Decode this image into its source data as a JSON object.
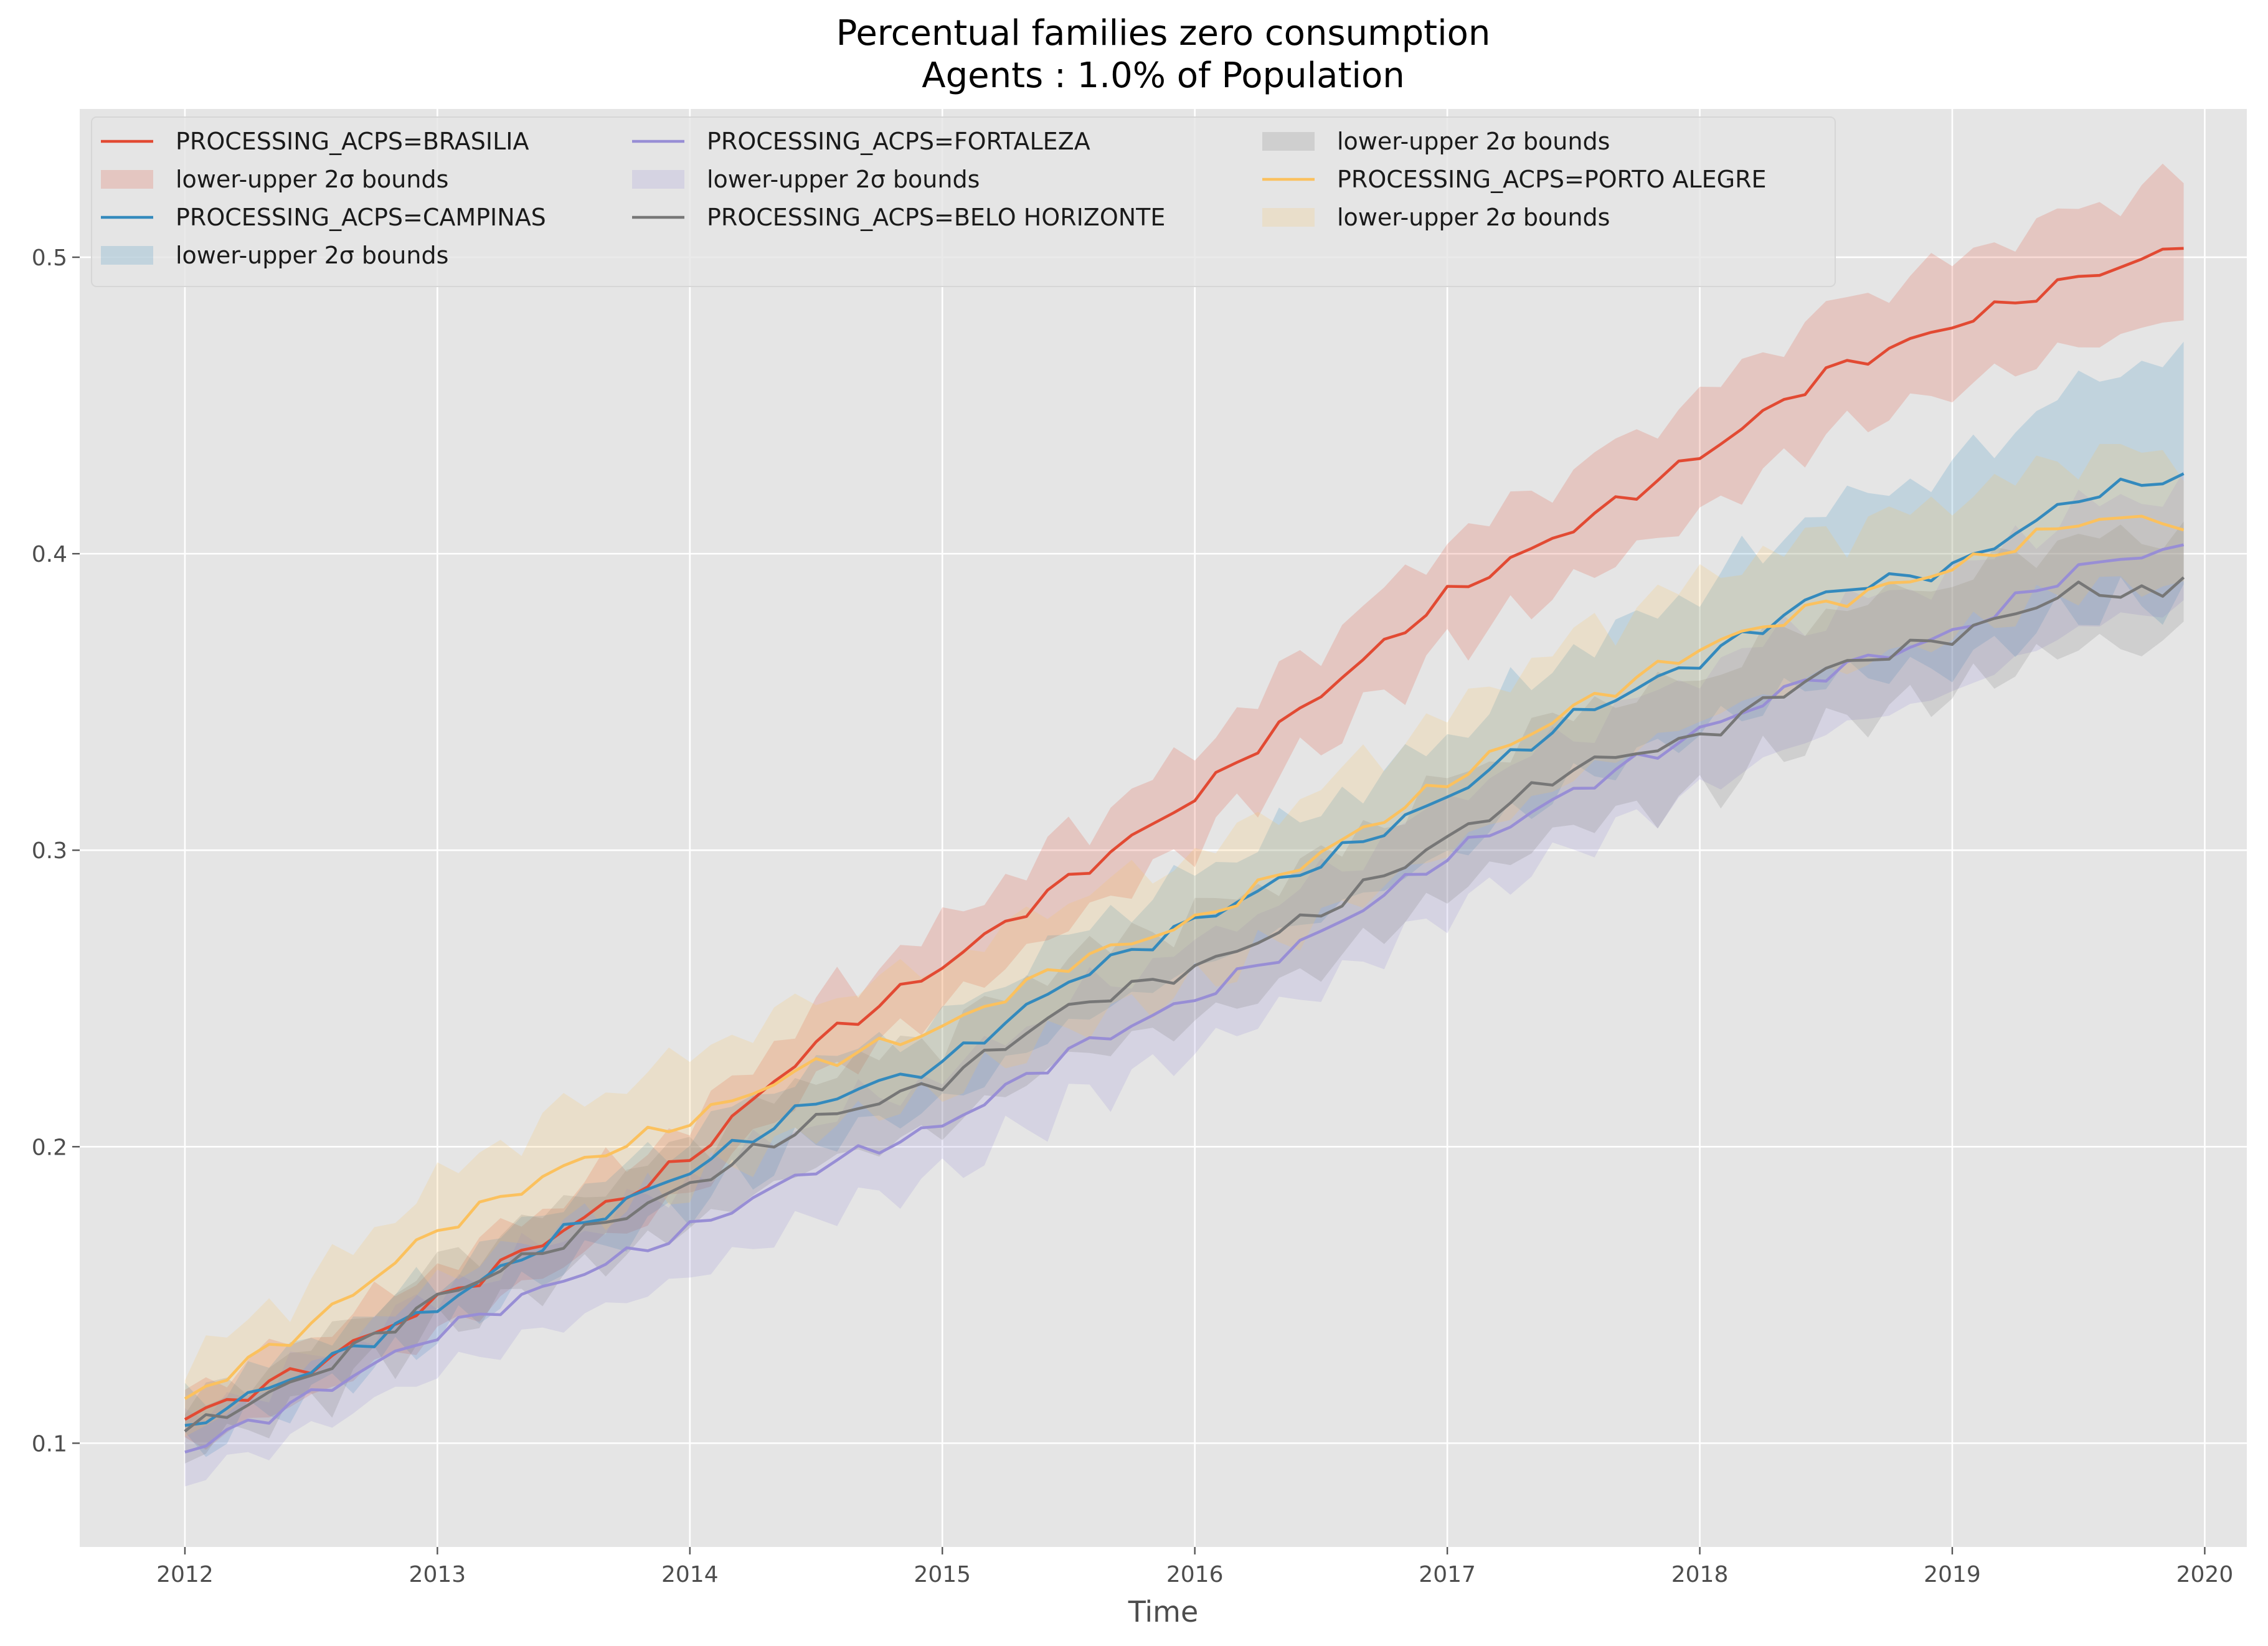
{
  "chart_data": {
    "type": "line",
    "title": "Percentual families zero consumption",
    "subtitle": "Agents : 1.0% of Population",
    "xlabel": "Time",
    "ylabel": "",
    "x_start": "2012-01",
    "x_end": "2019-12",
    "x_step": "1 month",
    "xlim": [
      "2011-08",
      "2020-03"
    ],
    "ylim": [
      0.065,
      0.55
    ],
    "x_ticks": [
      "2012",
      "2013",
      "2014",
      "2015",
      "2016",
      "2017",
      "2018",
      "2019",
      "2020"
    ],
    "y_ticks": [
      "0.1",
      "0.2",
      "0.3",
      "0.4",
      "0.5"
    ],
    "grid": true,
    "style": "ggplot",
    "legend_position": "top-left",
    "band_label": "lower-upper 2σ bounds",
    "series": [
      {
        "name": "PROCESSING_ACPS=BRASILIA",
        "color": "#E24A33",
        "anchors": [
          [
            0,
            0.108
          ],
          [
            6,
            0.126
          ],
          [
            12,
            0.148
          ],
          [
            18,
            0.172
          ],
          [
            24,
            0.196
          ],
          [
            30,
            0.235
          ],
          [
            36,
            0.261
          ],
          [
            42,
            0.29
          ],
          [
            48,
            0.318
          ],
          [
            54,
            0.353
          ],
          [
            60,
            0.386
          ],
          [
            66,
            0.409
          ],
          [
            72,
            0.433
          ],
          [
            78,
            0.461
          ],
          [
            84,
            0.477
          ],
          [
            90,
            0.493
          ],
          [
            95,
            0.503
          ]
        ],
        "band_anchors": [
          [
            0,
            0.01
          ],
          [
            24,
            0.012
          ],
          [
            48,
            0.016
          ],
          [
            72,
            0.02
          ],
          [
            95,
            0.024
          ]
        ]
      },
      {
        "name": "PROCESSING_ACPS=CAMPINAS",
        "color": "#348ABD",
        "anchors": [
          [
            0,
            0.106
          ],
          [
            6,
            0.125
          ],
          [
            12,
            0.146
          ],
          [
            18,
            0.171
          ],
          [
            24,
            0.192
          ],
          [
            30,
            0.215
          ],
          [
            36,
            0.228
          ],
          [
            42,
            0.256
          ],
          [
            48,
            0.276
          ],
          [
            54,
            0.296
          ],
          [
            60,
            0.318
          ],
          [
            66,
            0.345
          ],
          [
            72,
            0.364
          ],
          [
            78,
            0.387
          ],
          [
            84,
            0.395
          ],
          [
            90,
            0.419
          ],
          [
            95,
            0.427
          ]
        ],
        "band_anchors": [
          [
            0,
            0.008
          ],
          [
            24,
            0.012
          ],
          [
            48,
            0.016
          ],
          [
            72,
            0.024
          ],
          [
            95,
            0.042
          ]
        ]
      },
      {
        "name": "PROCESSING_ACPS=FORTALEZA",
        "color": "#988ED5",
        "anchors": [
          [
            0,
            0.097
          ],
          [
            6,
            0.116
          ],
          [
            12,
            0.137
          ],
          [
            18,
            0.155
          ],
          [
            24,
            0.172
          ],
          [
            30,
            0.193
          ],
          [
            36,
            0.207
          ],
          [
            42,
            0.232
          ],
          [
            48,
            0.25
          ],
          [
            54,
            0.272
          ],
          [
            60,
            0.298
          ],
          [
            66,
            0.32
          ],
          [
            72,
            0.34
          ],
          [
            78,
            0.36
          ],
          [
            84,
            0.373
          ],
          [
            90,
            0.395
          ],
          [
            95,
            0.403
          ]
        ],
        "band_anchors": [
          [
            0,
            0.01
          ],
          [
            24,
            0.016
          ],
          [
            48,
            0.018
          ],
          [
            72,
            0.02
          ],
          [
            95,
            0.02
          ]
        ]
      },
      {
        "name": "PROCESSING_ACPS=BELO HORIZONTE",
        "color": "#777777",
        "anchors": [
          [
            0,
            0.104
          ],
          [
            6,
            0.123
          ],
          [
            12,
            0.149
          ],
          [
            18,
            0.168
          ],
          [
            24,
            0.187
          ],
          [
            30,
            0.209
          ],
          [
            36,
            0.222
          ],
          [
            42,
            0.247
          ],
          [
            48,
            0.26
          ],
          [
            54,
            0.279
          ],
          [
            60,
            0.304
          ],
          [
            66,
            0.328
          ],
          [
            72,
            0.338
          ],
          [
            78,
            0.361
          ],
          [
            84,
            0.372
          ],
          [
            90,
            0.388
          ],
          [
            94,
            0.386
          ],
          [
            95,
            0.392
          ]
        ],
        "band_anchors": [
          [
            0,
            0.008
          ],
          [
            24,
            0.014
          ],
          [
            48,
            0.018
          ],
          [
            72,
            0.02
          ],
          [
            95,
            0.018
          ]
        ]
      },
      {
        "name": "PROCESSING_ACPS=PORTO ALEGRE",
        "color": "#FBC15E",
        "anchors": [
          [
            0,
            0.115
          ],
          [
            6,
            0.14
          ],
          [
            12,
            0.172
          ],
          [
            18,
            0.193
          ],
          [
            24,
            0.209
          ],
          [
            30,
            0.228
          ],
          [
            36,
            0.24
          ],
          [
            42,
            0.262
          ],
          [
            48,
            0.276
          ],
          [
            54,
            0.299
          ],
          [
            60,
            0.323
          ],
          [
            66,
            0.348
          ],
          [
            72,
            0.368
          ],
          [
            78,
            0.383
          ],
          [
            84,
            0.395
          ],
          [
            90,
            0.411
          ],
          [
            94,
            0.412
          ],
          [
            95,
            0.408
          ]
        ],
        "band_anchors": [
          [
            0,
            0.012
          ],
          [
            24,
            0.022
          ],
          [
            48,
            0.022
          ],
          [
            72,
            0.024
          ],
          [
            95,
            0.022
          ]
        ]
      }
    ]
  }
}
